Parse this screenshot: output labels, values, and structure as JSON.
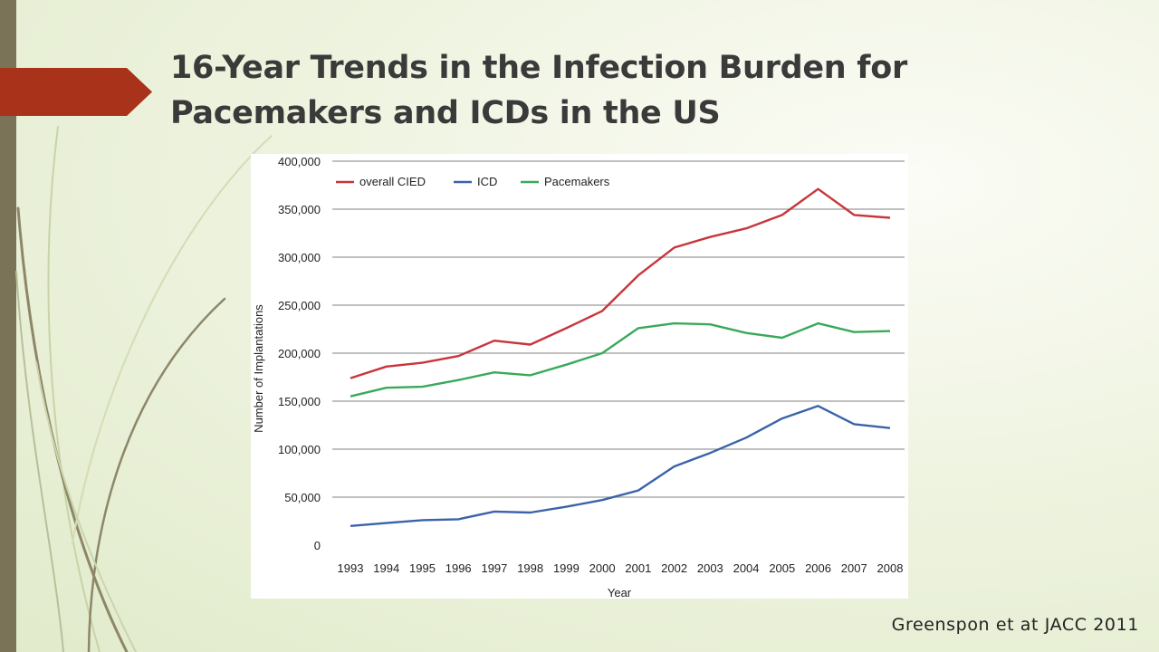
{
  "slide": {
    "title_line1": "16-Year Trends in the Infection Burden for",
    "title_line2": "Pacemakers and ICDs in the US",
    "citation": "Greenspon et at JACC 2011",
    "accent_color": "#a8321a",
    "sidebar_color": "#7b7357"
  },
  "chart_data": {
    "type": "line",
    "title": "",
    "xlabel": "Year",
    "ylabel": "Number of Implantations",
    "x": [
      "1993",
      "1994",
      "1995",
      "1996",
      "1997",
      "1998",
      "1999",
      "2000",
      "2001",
      "2002",
      "2003",
      "2004",
      "2005",
      "2006",
      "2007",
      "2008"
    ],
    "ylim": [
      0,
      400000
    ],
    "yticks": [
      0,
      50000,
      100000,
      150000,
      200000,
      250000,
      300000,
      350000,
      400000
    ],
    "ytick_labels": [
      "0",
      "50,000",
      "100,000",
      "150,000",
      "200,000",
      "250,000",
      "300,000",
      "350,000",
      "400,000"
    ],
    "grid": true,
    "legend_position": "top-left",
    "series": [
      {
        "name": "overall CIED",
        "color": "#c8353a",
        "values": [
          174000,
          186000,
          190000,
          197000,
          213000,
          209000,
          226000,
          244000,
          281000,
          310000,
          321000,
          330000,
          344000,
          371000,
          344000,
          341000
        ]
      },
      {
        "name": "ICD",
        "color": "#3a63a8",
        "values": [
          20000,
          23000,
          26000,
          27000,
          35000,
          34000,
          40000,
          47000,
          57000,
          82000,
          96000,
          112000,
          132000,
          145000,
          126000,
          122000
        ]
      },
      {
        "name": "Pacemakers",
        "color": "#3aa95a",
        "values": [
          155000,
          164000,
          165000,
          172000,
          180000,
          177000,
          188000,
          200000,
          226000,
          231000,
          230000,
          221000,
          216000,
          231000,
          222000,
          223000
        ]
      }
    ]
  }
}
